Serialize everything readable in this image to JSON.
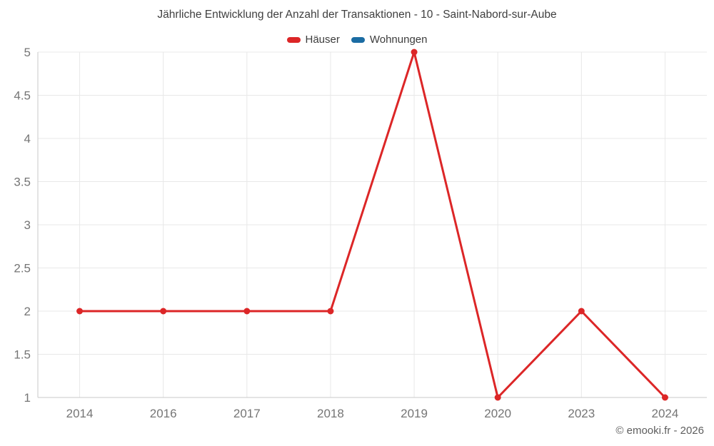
{
  "watermark": "© emooki.fr - 2026",
  "chart_data": {
    "type": "line",
    "title": "Jährliche Entwicklung der Anzahl der Transaktionen - 10 - Saint-Nabord-sur-Aube",
    "categories": [
      "2014",
      "2016",
      "2017",
      "2018",
      "2019",
      "2020",
      "2023",
      "2024"
    ],
    "series": [
      {
        "name": "Häuser",
        "color": "#dc2627",
        "values": [
          2,
          2,
          2,
          2,
          5,
          1,
          2,
          1
        ]
      },
      {
        "name": "Wohnungen",
        "color": "#1b6ca3",
        "values": []
      }
    ],
    "xlabel": "",
    "ylabel": "",
    "ylim": [
      1,
      5
    ],
    "yticks": [
      1,
      1.5,
      2,
      2.5,
      3,
      3.5,
      4,
      4.5,
      5
    ],
    "grid": true,
    "legend_position": "top",
    "colors": {
      "grid_line": "#e8e8e8",
      "axis_line": "#c9c9c9",
      "tick_label": "#757575",
      "title_text": "#3f3f3f"
    }
  }
}
